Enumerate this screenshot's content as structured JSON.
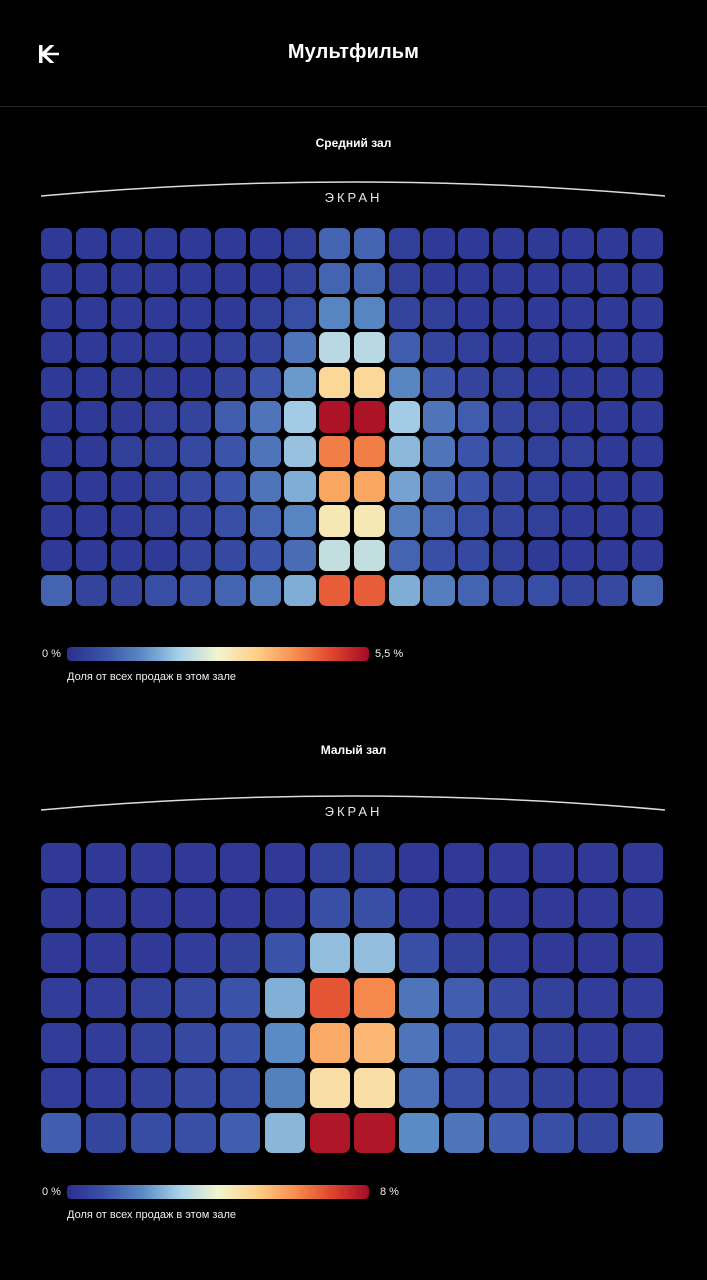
{
  "header": {
    "title": "Мультфильм",
    "logo_icon": "kinopoisk-logo-icon"
  },
  "colors": {
    "background": "#000000",
    "scale": [
      "#2b2f8e",
      "#3a53a8",
      "#5b8bc4",
      "#a9d2e8",
      "#f2f4ce",
      "#fdd08a",
      "#f79150",
      "#e0452e",
      "#a30b26"
    ]
  },
  "chart_data": [
    {
      "type": "heatmap",
      "title": "Средний зал",
      "screen_label": "ЭКРАН",
      "rows": 11,
      "cols": 18,
      "value_unit": "%",
      "vmin": 0,
      "vmax": 5.5,
      "legend": {
        "min_label": "0 %",
        "max_label": "5,5 %",
        "caption": "Доля от всех продаж в этом зале"
      },
      "values": [
        [
          0.2,
          0.2,
          0.2,
          0.2,
          0.2,
          0.2,
          0.2,
          0.3,
          0.9,
          0.9,
          0.3,
          0.2,
          0.2,
          0.2,
          0.2,
          0.2,
          0.2,
          0.2
        ],
        [
          0.2,
          0.2,
          0.2,
          0.2,
          0.2,
          0.2,
          0.2,
          0.4,
          0.9,
          0.9,
          0.3,
          0.2,
          0.2,
          0.2,
          0.2,
          0.2,
          0.2,
          0.2
        ],
        [
          0.2,
          0.2,
          0.2,
          0.2,
          0.2,
          0.2,
          0.3,
          0.6,
          1.3,
          1.3,
          0.4,
          0.3,
          0.2,
          0.2,
          0.2,
          0.2,
          0.2,
          0.2
        ],
        [
          0.2,
          0.2,
          0.2,
          0.2,
          0.2,
          0.3,
          0.4,
          1.1,
          2.2,
          2.2,
          0.8,
          0.4,
          0.3,
          0.2,
          0.2,
          0.2,
          0.2,
          0.2
        ],
        [
          0.2,
          0.2,
          0.2,
          0.2,
          0.2,
          0.4,
          0.7,
          1.5,
          3.3,
          3.3,
          1.3,
          0.7,
          0.4,
          0.3,
          0.2,
          0.2,
          0.2,
          0.2
        ],
        [
          0.2,
          0.2,
          0.2,
          0.3,
          0.4,
          0.8,
          1.1,
          2.0,
          5.4,
          5.4,
          2.0,
          1.1,
          0.8,
          0.4,
          0.3,
          0.2,
          0.2,
          0.2
        ],
        [
          0.2,
          0.2,
          0.3,
          0.3,
          0.5,
          0.7,
          1.1,
          1.9,
          4.3,
          4.3,
          1.8,
          1.1,
          0.7,
          0.5,
          0.3,
          0.3,
          0.2,
          0.2
        ],
        [
          0.2,
          0.2,
          0.2,
          0.3,
          0.5,
          0.7,
          1.1,
          1.7,
          3.9,
          3.9,
          1.6,
          1.0,
          0.7,
          0.4,
          0.3,
          0.2,
          0.2,
          0.2
        ],
        [
          0.2,
          0.2,
          0.2,
          0.3,
          0.4,
          0.6,
          0.9,
          1.3,
          3.0,
          3.0,
          1.2,
          0.9,
          0.6,
          0.4,
          0.3,
          0.2,
          0.2,
          0.2
        ],
        [
          0.2,
          0.2,
          0.2,
          0.2,
          0.4,
          0.5,
          0.7,
          1.0,
          2.3,
          2.3,
          0.9,
          0.6,
          0.5,
          0.3,
          0.2,
          0.2,
          0.2,
          0.2
        ],
        [
          0.9,
          0.4,
          0.4,
          0.6,
          0.7,
          0.9,
          1.2,
          1.7,
          4.6,
          4.6,
          1.7,
          1.2,
          0.9,
          0.6,
          0.6,
          0.4,
          0.5,
          0.9
        ]
      ]
    },
    {
      "type": "heatmap",
      "title": "Малый зал",
      "screen_label": "ЭКРАН",
      "rows": 7,
      "cols": 14,
      "value_unit": "%",
      "vmin": 0,
      "vmax": 8,
      "legend": {
        "min_label": "0 %",
        "max_label": "8 %",
        "caption": "Доля от всех продаж в этом зале"
      },
      "values": [
        [
          0.3,
          0.3,
          0.3,
          0.3,
          0.3,
          0.3,
          0.5,
          0.5,
          0.3,
          0.3,
          0.3,
          0.3,
          0.3,
          0.3
        ],
        [
          0.3,
          0.3,
          0.3,
          0.3,
          0.3,
          0.4,
          0.9,
          0.9,
          0.4,
          0.3,
          0.3,
          0.3,
          0.3,
          0.3
        ],
        [
          0.3,
          0.3,
          0.3,
          0.4,
          0.5,
          1.0,
          2.7,
          2.7,
          0.9,
          0.5,
          0.4,
          0.3,
          0.3,
          0.3
        ],
        [
          0.4,
          0.4,
          0.5,
          0.7,
          1.0,
          2.5,
          6.8,
          6.1,
          1.6,
          1.2,
          0.7,
          0.5,
          0.4,
          0.4
        ],
        [
          0.4,
          0.4,
          0.5,
          0.7,
          1.0,
          2.0,
          5.6,
          5.4,
          1.6,
          1.0,
          0.8,
          0.5,
          0.4,
          0.4
        ],
        [
          0.4,
          0.4,
          0.5,
          0.7,
          0.8,
          1.8,
          4.6,
          4.6,
          1.5,
          0.9,
          0.7,
          0.5,
          0.4,
          0.4
        ],
        [
          1.2,
          0.6,
          0.8,
          0.9,
          1.2,
          2.6,
          7.8,
          7.8,
          2.0,
          1.6,
          1.2,
          0.9,
          0.6,
          1.2
        ]
      ]
    }
  ]
}
